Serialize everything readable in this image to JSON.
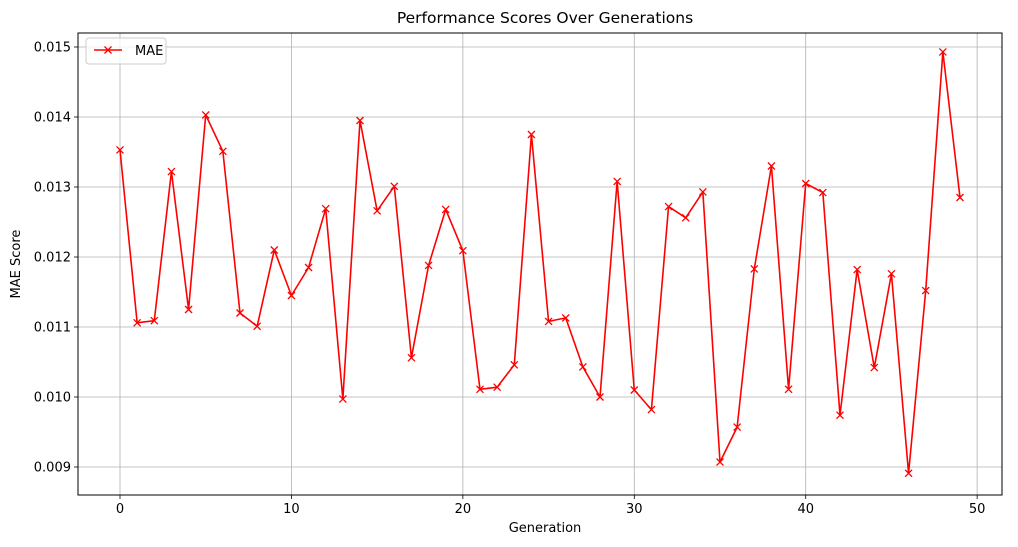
{
  "chart_data": {
    "type": "line",
    "title": "Performance Scores Over Generations",
    "xlabel": "Generation",
    "ylabel": "MAE Score",
    "xlim": [
      -2.45,
      51.45
    ],
    "ylim": [
      0.0086,
      0.0152
    ],
    "xticks": [
      0,
      10,
      20,
      30,
      40,
      50
    ],
    "yticks": [
      0.009,
      0.01,
      0.011,
      0.012,
      0.013,
      0.014,
      0.015
    ],
    "ytick_labels": [
      "0.009",
      "0.010",
      "0.011",
      "0.012",
      "0.013",
      "0.014",
      "0.015"
    ],
    "grid": true,
    "legend_position": "upper left",
    "series": [
      {
        "name": "MAE",
        "color": "#ff0000",
        "marker": "x",
        "x": [
          0,
          1,
          2,
          3,
          4,
          5,
          6,
          7,
          8,
          9,
          10,
          11,
          12,
          13,
          14,
          15,
          16,
          17,
          18,
          19,
          20,
          21,
          22,
          23,
          24,
          25,
          26,
          27,
          28,
          29,
          30,
          31,
          32,
          33,
          34,
          35,
          36,
          37,
          38,
          39,
          40,
          41,
          42,
          43,
          44,
          45,
          46,
          47,
          48,
          49
        ],
        "values": [
          0.01353,
          0.01106,
          0.01109,
          0.01322,
          0.01125,
          0.01403,
          0.01351,
          0.0112,
          0.01101,
          0.0121,
          0.01145,
          0.01185,
          0.01269,
          0.00997,
          0.01395,
          0.01266,
          0.01301,
          0.01056,
          0.01188,
          0.01268,
          0.01209,
          0.01011,
          0.01014,
          0.01046,
          0.01375,
          0.01108,
          0.01113,
          0.01043,
          0.01,
          0.01308,
          0.0101,
          0.00982,
          0.01272,
          0.01256,
          0.01293,
          0.00907,
          0.00957,
          0.01183,
          0.0133,
          0.01011,
          0.01305,
          0.01292,
          0.00974,
          0.01182,
          0.01042,
          0.01176,
          0.00891,
          0.01152,
          0.01493,
          0.01285
        ]
      }
    ]
  }
}
